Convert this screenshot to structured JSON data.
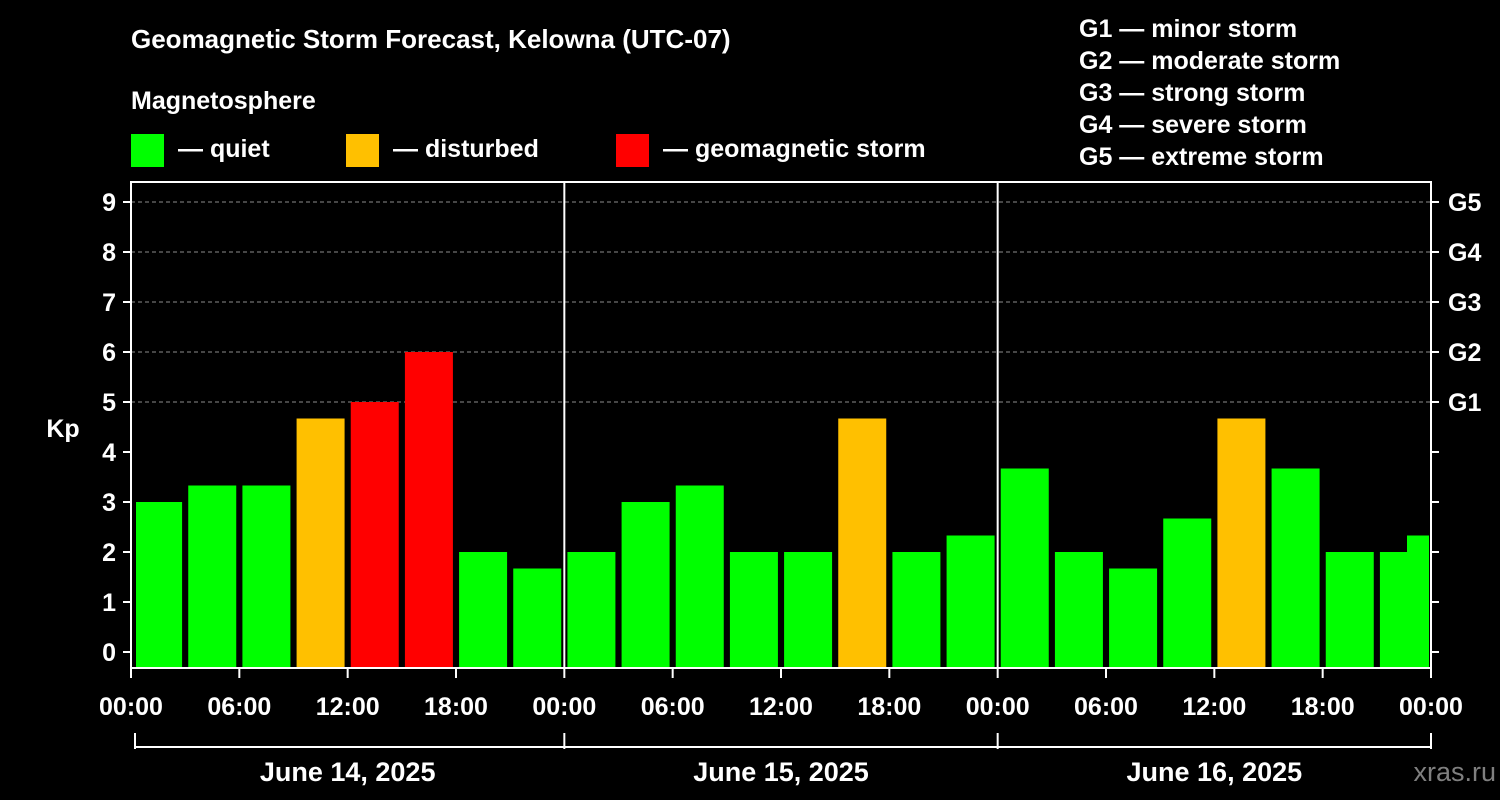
{
  "chart_data": {
    "type": "bar",
    "title": "Geomagnetic Storm Forecast, Kelowna (UTC-07)",
    "legend_title": "Magnetosphere",
    "legend": [
      {
        "label": "— quiet",
        "color": "#00ff00"
      },
      {
        "label": "— disturbed",
        "color": "#ffc000"
      },
      {
        "label": "— geomagnetic storm",
        "color": "#ff0000"
      }
    ],
    "storm_scale": [
      "G1 — minor storm",
      "G2 — moderate storm",
      "G3 — strong storm",
      "G4 — severe storm",
      "G5 — extreme storm"
    ],
    "ylabel": "Kp",
    "ylim": [
      0,
      9
    ],
    "y_ticks": [
      "0",
      "1",
      "2",
      "3",
      "4",
      "5",
      "6",
      "7",
      "8",
      "9"
    ],
    "right_ticks": [
      {
        "kp": 5,
        "label": "G1"
      },
      {
        "kp": 6,
        "label": "G2"
      },
      {
        "kp": 7,
        "label": "G3"
      },
      {
        "kp": 8,
        "label": "G4"
      },
      {
        "kp": 9,
        "label": "G5"
      }
    ],
    "x_ticks": [
      "00:00",
      "06:00",
      "12:00",
      "18:00",
      "00:00",
      "06:00",
      "12:00",
      "18:00",
      "00:00",
      "06:00",
      "12:00",
      "18:00",
      "00:00"
    ],
    "days": [
      "June 14, 2025",
      "June 15, 2025",
      "June 16, 2025"
    ],
    "grid": true,
    "bar_hours": [
      1.5,
      4.5,
      7.5,
      10.5,
      13.5,
      16.5,
      19.5,
      22.5,
      25.5,
      28.5,
      31.5,
      34.5,
      37.5,
      40.5,
      43.5,
      46.5,
      49.5,
      52.5,
      55.5,
      58.5,
      61.5,
      64.5,
      67.5,
      70.5,
      72
    ],
    "values": [
      3.0,
      3.33,
      3.33,
      4.67,
      5.0,
      6.0,
      2.0,
      1.67,
      2.0,
      3.0,
      3.33,
      2.0,
      2.0,
      4.67,
      2.0,
      2.33,
      3.67,
      2.0,
      1.67,
      2.67,
      4.67,
      3.67,
      2.0,
      2.0,
      2.33
    ],
    "categories": [
      "quiet",
      "quiet",
      "quiet",
      "disturbed",
      "storm",
      "storm",
      "quiet",
      "quiet",
      "quiet",
      "quiet",
      "quiet",
      "quiet",
      "quiet",
      "disturbed",
      "quiet",
      "quiet",
      "quiet",
      "quiet",
      "quiet",
      "quiet",
      "disturbed",
      "quiet",
      "quiet",
      "quiet",
      "quiet"
    ],
    "category_colors": {
      "quiet": "#00ff00",
      "disturbed": "#ffc000",
      "storm": "#ff0000"
    }
  },
  "watermark": "xras.ru"
}
